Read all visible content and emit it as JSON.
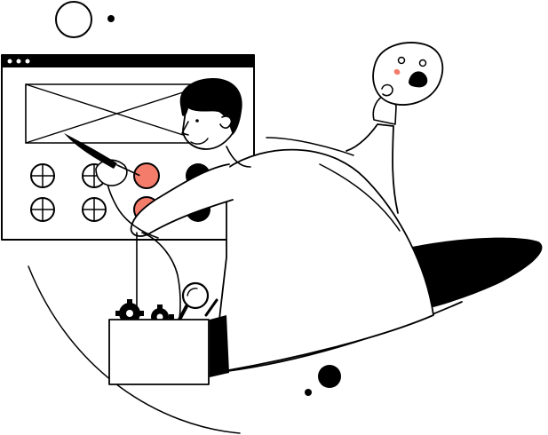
{
  "illustration": {
    "colors": {
      "ink": "#000000",
      "paper": "#ffffff",
      "accent": "#f47c6b"
    },
    "elements": [
      "browser-window-wireframe",
      "person-with-brush",
      "palette-button-grid",
      "sad-face-mask",
      "toolbox-with-gears",
      "magnifier-icon",
      "dark-hole-shadow",
      "decorative-circles"
    ]
  }
}
